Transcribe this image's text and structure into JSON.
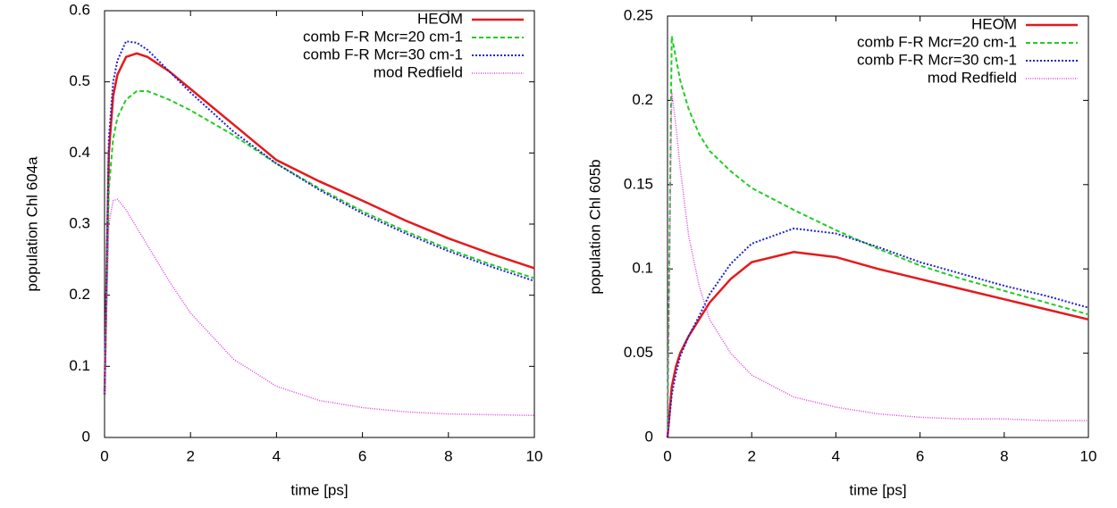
{
  "chart_data": [
    {
      "type": "line",
      "xlabel": "time [ps]",
      "ylabel": "population Chl 604a",
      "x": [
        0,
        0.1,
        0.2,
        0.3,
        0.5,
        0.75,
        1,
        1.5,
        2,
        3,
        4,
        5,
        6,
        7,
        8,
        9,
        10
      ],
      "xlim": [
        0,
        10
      ],
      "xticks": [
        0,
        2,
        4,
        6,
        8,
        10
      ],
      "ylim": [
        0,
        0.6
      ],
      "yticks": [
        0,
        0.1,
        0.2,
        0.3,
        0.4,
        0.5,
        0.6
      ],
      "series": [
        {
          "name": "HEOM",
          "color": "#e41a1c",
          "values": [
            0.06,
            0.4,
            0.48,
            0.51,
            0.535,
            0.54,
            0.535,
            0.515,
            0.49,
            0.44,
            0.39,
            0.36,
            0.333,
            0.305,
            0.28,
            0.258,
            0.238
          ]
        },
        {
          "name": "comb F-R Mcr=20 cm-1",
          "color": "#22cc22",
          "values": [
            0.06,
            0.35,
            0.42,
            0.45,
            0.475,
            0.487,
            0.487,
            0.475,
            0.46,
            0.425,
            0.385,
            0.35,
            0.318,
            0.29,
            0.265,
            0.243,
            0.224
          ]
        },
        {
          "name": "comb F-R Mcr=30 cm-1",
          "color": "#2222cc",
          "values": [
            0.06,
            0.42,
            0.5,
            0.53,
            0.557,
            0.555,
            0.545,
            0.515,
            0.485,
            0.43,
            0.385,
            0.348,
            0.315,
            0.287,
            0.262,
            0.24,
            0.22
          ]
        },
        {
          "name": "mod Redfield",
          "color": "#dd44dd",
          "values": [
            0.06,
            0.3,
            0.333,
            0.335,
            0.32,
            0.295,
            0.27,
            0.22,
            0.175,
            0.11,
            0.072,
            0.052,
            0.042,
            0.036,
            0.033,
            0.032,
            0.031
          ]
        }
      ]
    },
    {
      "type": "line",
      "xlabel": "time [ps]",
      "ylabel": "population Chl 605b",
      "x": [
        0,
        0.1,
        0.2,
        0.3,
        0.5,
        0.75,
        1,
        1.5,
        2,
        3,
        4,
        5,
        6,
        7,
        8,
        9,
        10
      ],
      "xlim": [
        0,
        10
      ],
      "xticks": [
        0,
        2,
        4,
        6,
        8,
        10
      ],
      "ylim": [
        0,
        0.25
      ],
      "yticks": [
        0,
        0.05,
        0.1,
        0.15,
        0.2,
        0.25
      ],
      "series": [
        {
          "name": "HEOM",
          "color": "#e41a1c",
          "values": [
            0,
            0.03,
            0.042,
            0.05,
            0.06,
            0.07,
            0.08,
            0.094,
            0.104,
            0.11,
            0.107,
            0.1,
            0.094,
            0.088,
            0.082,
            0.076,
            0.07
          ]
        },
        {
          "name": "comb F-R Mcr=20 cm-1",
          "color": "#22cc22",
          "values": [
            0.005,
            0.238,
            0.225,
            0.212,
            0.195,
            0.18,
            0.17,
            0.158,
            0.148,
            0.135,
            0.123,
            0.112,
            0.102,
            0.094,
            0.087,
            0.08,
            0.073
          ]
        },
        {
          "name": "comb F-R Mcr=30 cm-1",
          "color": "#2222cc",
          "values": [
            0,
            0.025,
            0.038,
            0.048,
            0.06,
            0.072,
            0.085,
            0.103,
            0.115,
            0.124,
            0.121,
            0.113,
            0.104,
            0.097,
            0.09,
            0.084,
            0.077
          ]
        },
        {
          "name": "mod Redfield",
          "color": "#dd44dd",
          "values": [
            0.005,
            0.205,
            0.185,
            0.16,
            0.12,
            0.09,
            0.07,
            0.05,
            0.037,
            0.024,
            0.018,
            0.014,
            0.012,
            0.011,
            0.011,
            0.01,
            0.01
          ]
        }
      ]
    }
  ]
}
